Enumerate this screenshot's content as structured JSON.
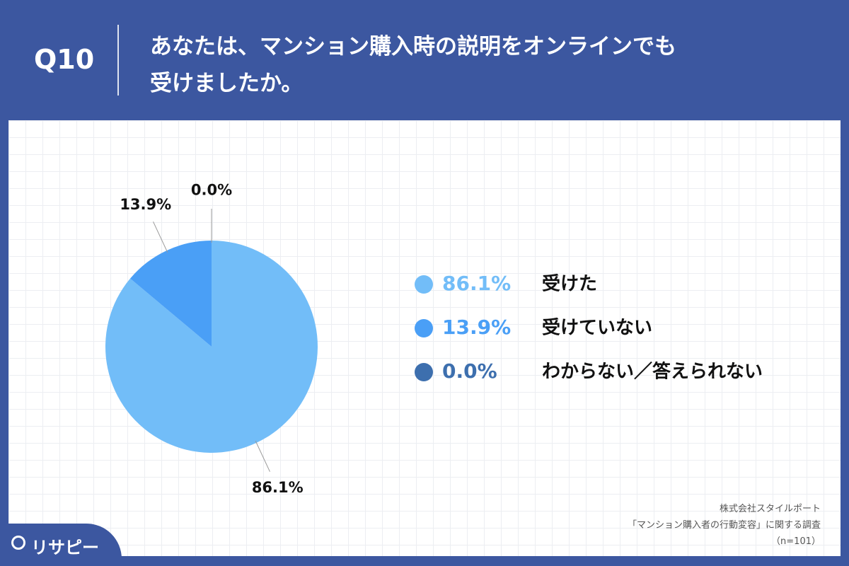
{
  "header": {
    "number": "Q10",
    "title": [
      "あなたは、マンション購入時の説明をオンラインでも",
      "受けましたか。"
    ]
  },
  "chart_data": {
    "type": "pie",
    "categories": [
      "受けた",
      "受けていない",
      "わからない／答えられない"
    ],
    "values": [
      86.1,
      13.9,
      0.0
    ],
    "value_labels": [
      "86.1%",
      "13.9%",
      "0.0%"
    ],
    "colors": [
      "#72bdf8",
      "#4a9ff6",
      "#3d6fae"
    ]
  },
  "footer": {
    "source": [
      "株式会社スタイルポート",
      "「マンション購入者の行動変容」に関する調査",
      "（n=101）"
    ],
    "logo": "リサピー"
  }
}
